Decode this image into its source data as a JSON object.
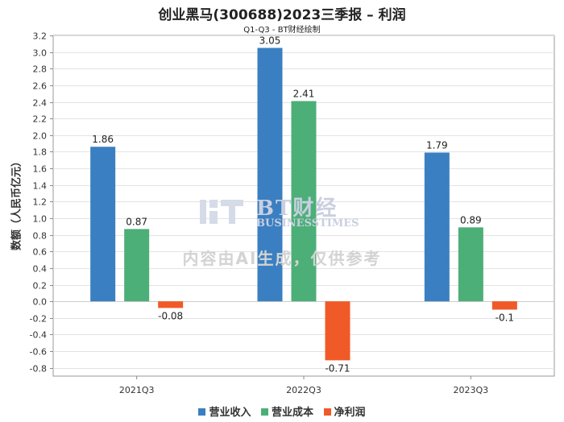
{
  "chart_data": {
    "type": "bar",
    "title": "创业黑马(300688)2023三季报 – 利润",
    "subtitle": "Q1-Q3 - BT财经绘制",
    "xlabel": "",
    "ylabel": "数额（人民币亿元）",
    "ylim": [
      -0.9,
      3.2
    ],
    "yticks": [
      3.2,
      3.0,
      2.8,
      2.6,
      2.4,
      2.2,
      2.0,
      1.8,
      1.6,
      1.4,
      1.2,
      1.0,
      0.8,
      0.6,
      0.4,
      0.2,
      0.0,
      -0.2,
      -0.4,
      -0.6,
      -0.8
    ],
    "categories": [
      "2021Q3",
      "2022Q3",
      "2023Q3"
    ],
    "series": [
      {
        "name": "营业收入",
        "color": "#3a7fc1",
        "values": [
          1.86,
          3.05,
          1.79
        ],
        "labels": [
          "1.86",
          "3.05",
          "1.79"
        ]
      },
      {
        "name": "营业成本",
        "color": "#4caf78",
        "values": [
          0.87,
          2.41,
          0.89
        ],
        "labels": [
          "0.87",
          "2.41",
          "0.89"
        ]
      },
      {
        "name": "净利润",
        "color": "#f05a28",
        "values": [
          -0.08,
          -0.71,
          -0.1
        ],
        "labels": [
          "-0.08",
          "-0.71",
          "-0.1"
        ]
      }
    ],
    "grid": true,
    "legend": "bottom"
  },
  "watermark": {
    "brand_cn": "BT财经",
    "brand_en": "BUSINESSTIMES",
    "note": "内容由AI生成，仅供参考"
  }
}
